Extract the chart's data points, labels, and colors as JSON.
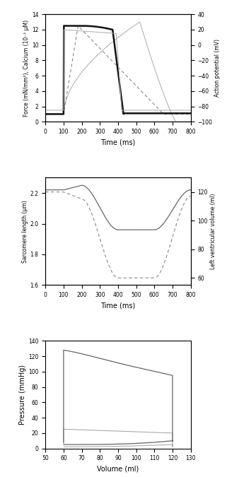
{
  "panel1": {
    "xlim": [
      0,
      800
    ],
    "ylim_left": [
      0,
      14
    ],
    "ylim_right": [
      -100,
      40
    ],
    "yticks_left": [
      0,
      2,
      4,
      6,
      8,
      10,
      12,
      14
    ],
    "yticks_right": [
      -100,
      -80,
      -60,
      -40,
      -20,
      0,
      20,
      40
    ],
    "xlabel": "Time (ms)",
    "ylabel_left": "Force (mN/mm²), Calcium (10⁻¹ μM)",
    "ylabel_right": "Action potential (mV)",
    "xticks": [
      0,
      100,
      200,
      300,
      400,
      500,
      600,
      700,
      800
    ]
  },
  "panel2": {
    "xlim": [
      0,
      800
    ],
    "ylim_left": [
      1.6,
      2.3
    ],
    "ylim_right": [
      55,
      130
    ],
    "yticks_left": [
      1.6,
      1.8,
      2.0,
      2.2
    ],
    "yticks_right": [
      60,
      80,
      100,
      120
    ],
    "xlabel": "Time (ms)",
    "ylabel_left": "Sarcomere length (μm)",
    "ylabel_right": "Left ventricular volume (ml)",
    "xticks": [
      0,
      100,
      200,
      300,
      400,
      500,
      600,
      700,
      800
    ]
  },
  "panel3": {
    "xlim": [
      50,
      130
    ],
    "ylim": [
      0,
      140
    ],
    "yticks": [
      0,
      20,
      40,
      60,
      80,
      100,
      120,
      140
    ],
    "xticks": [
      50,
      60,
      70,
      80,
      90,
      100,
      110,
      120,
      130
    ],
    "xlabel": "Volume (ml)",
    "ylabel": "Pressure (mmHg)"
  },
  "colors": {
    "black": "#111111",
    "dark_gray": "#666666",
    "light_gray": "#aaaaaa",
    "medium_gray": "#888888"
  }
}
